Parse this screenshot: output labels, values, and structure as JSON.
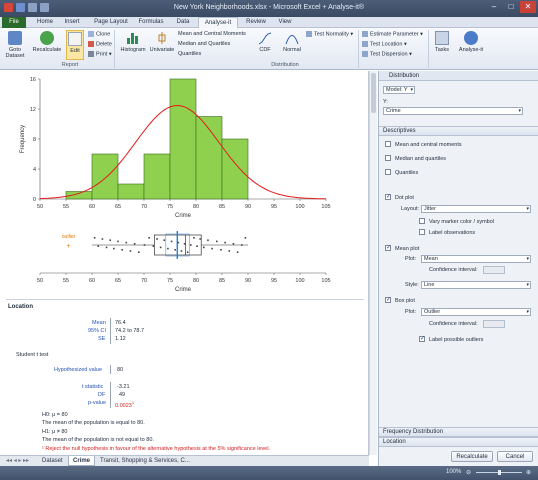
{
  "window": {
    "title": "New York Neighborhoods.xlsx - Microsoft Excel + Analyse-it®"
  },
  "tabs": [
    "File",
    "Home",
    "Insert",
    "Page Layout",
    "Formulas",
    "Data",
    "Analyse-it",
    "Review",
    "View"
  ],
  "ribbon": {
    "goto_dataset_1": "Goto",
    "goto_dataset_2": "Dataset",
    "recalculate": "Recalculate",
    "edit": "Edit",
    "clone": "Clone",
    "delete": "Delete",
    "print": "Print",
    "histogram": "Histogram",
    "univariate": "Univariate",
    "mean_central": "Mean and Central Moments",
    "median_quartiles": "Median and Quartiles",
    "quantiles": "Quantiles",
    "cdf": "CDF",
    "normal": "Normal",
    "test_normality": "Test Normality",
    "estimate_parameter": "Estimate Parameter",
    "test_location": "Test Location",
    "test_dispersion": "Test Dispersion",
    "tasks": "Tasks",
    "analyse_it": "Analyse-it",
    "group_report": "Report",
    "group_distribution": "Distribution"
  },
  "chart_data": [
    {
      "type": "bar",
      "xlabel": "Crime",
      "ylabel": "Frequency",
      "xlim": [
        50,
        105
      ],
      "ylim": [
        0,
        16
      ],
      "xticks": [
        50,
        55,
        60,
        65,
        70,
        75,
        80,
        85,
        90,
        95,
        100,
        105
      ],
      "yticks": [
        0,
        4,
        8,
        12,
        16
      ],
      "bin_edges": [
        55,
        60,
        65,
        70,
        75,
        80,
        85,
        90
      ],
      "values": [
        1,
        6,
        2,
        6,
        16,
        11,
        8
      ],
      "bar_color": "#8fd14f",
      "curve_color": "#e21b1b",
      "normal_curve": {
        "mean": 76.4,
        "sd": 8.0
      }
    },
    {
      "type": "scatter",
      "xlabel": "Crime",
      "xlim": [
        50,
        105
      ],
      "xticks": [
        50,
        55,
        60,
        65,
        70,
        75,
        80,
        85,
        90,
        95,
        100,
        105
      ],
      "outlier_label": "outlier",
      "outlier_x": 55.5,
      "box": {
        "q1": 72,
        "median": 78,
        "q3": 81,
        "whisker_low": 60,
        "whisker_high": 90,
        "mean": 76.4,
        "ci": [
          74.2,
          78.7
        ]
      },
      "mean_color": "#2b7fd6",
      "points_x": [
        60.5,
        61.2,
        62,
        62.8,
        63.5,
        64.2,
        65,
        65.8,
        66.6,
        67.4,
        68.2,
        69,
        70.1,
        71,
        71.8,
        72.5,
        73.2,
        73.9,
        74.6,
        75.3,
        76,
        76.6,
        77.2,
        77.8,
        78.4,
        79,
        79.6,
        80.2,
        80.8,
        81.5,
        82.3,
        83.1,
        84,
        84.8,
        85.6,
        86.4,
        87.2,
        88,
        88.8,
        89.5
      ]
    }
  ],
  "report": {
    "location_head": "Location",
    "mean_label": "Mean",
    "mean_value": "76.4",
    "ci_label": "95% CI",
    "ci_value": "74.2  to  78.7",
    "se_label": "SE",
    "se_value": "1.12",
    "ttest_head": "Student t test",
    "hyp_label": "Hypothesized value",
    "hyp_value": "80",
    "t_label": "t statistic",
    "t_value": "-3.21",
    "df_label": "DF",
    "df_value": "49",
    "p_label": "p-value",
    "p_value": "0.0023",
    "p_superscript": "1",
    "h0": "H0: μ = 80",
    "h0_text": "The mean of the population is equal to 80.",
    "h1": "H1: μ ≠ 80",
    "h1_text": "The mean of the population is not equal to 80.",
    "conclusion": "¹ Reject the null hypothesis in favour of the alternative hypothesis at the 5% significance level."
  },
  "panel": {
    "title": "Distribution",
    "model": "Model: Y",
    "y_label": "Y:",
    "y_value": "Crime",
    "sec_descriptives": "Descriptives",
    "mean_central": "Mean and central moments",
    "median_quartiles": "Median and quartiles",
    "quantiles": "Quantiles",
    "dot_plot": "Dot plot",
    "layout_label": "Layout:",
    "layout_value": "Jitter",
    "vary_marker": "Vary marker color / symbol",
    "label_obs": "Label observations",
    "mean_plot": "Mean plot",
    "plot_label": "Plot:",
    "mean_plot_value": "Mean",
    "conf_label": "Confidence interval:",
    "style_label": "Style:",
    "style_value": "Line",
    "box_plot": "Box plot",
    "box_plot_value": "Outlier",
    "label_outliers": "Label possible outliers",
    "sec_freq": "Frequency Distribution",
    "sec_location": "Location",
    "recalc_btn": "Recalculate",
    "cancel_btn": "Cancel"
  },
  "sheets": [
    "Dataset",
    "Crime",
    "Transit, Shopping & Services, C..."
  ],
  "status": {
    "zoom": "100%"
  }
}
